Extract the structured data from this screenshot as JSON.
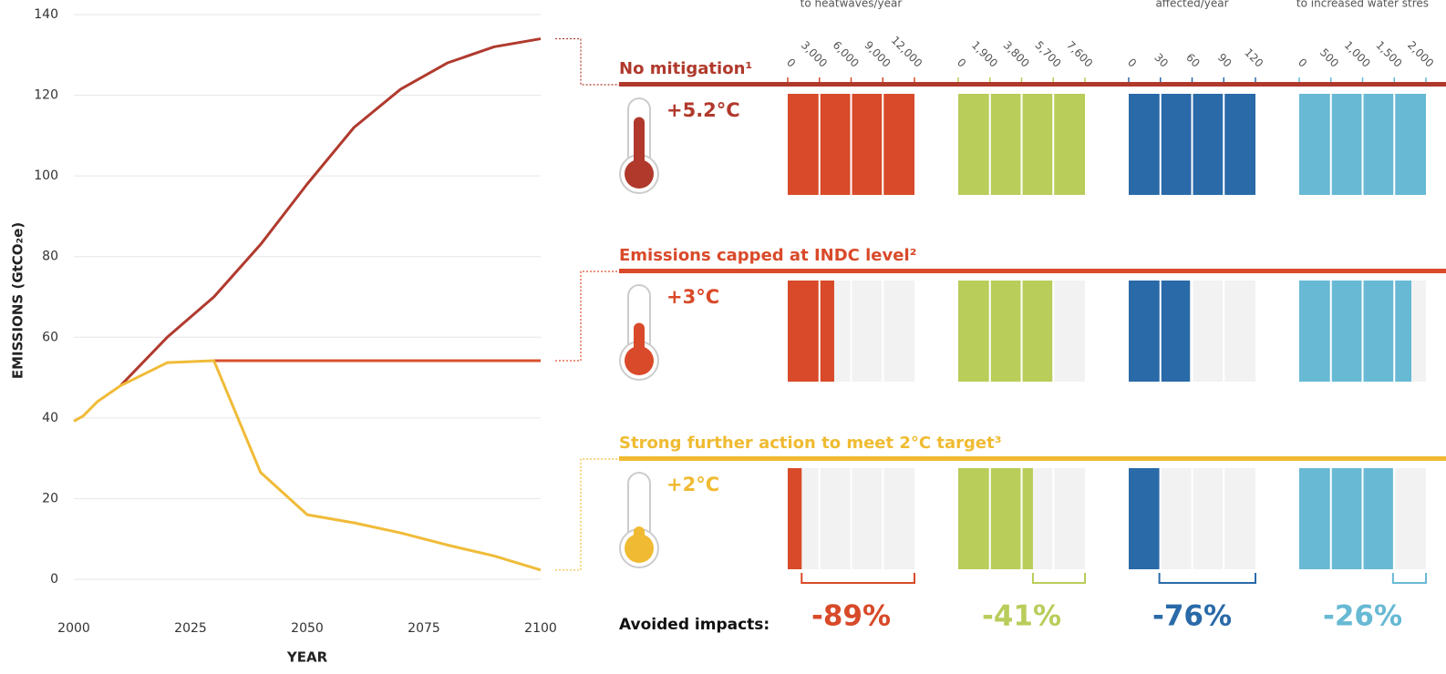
{
  "chart_data": [
    {
      "type": "line",
      "ylabel": "EMISSIONS (GtCO₂e)",
      "xlabel": "YEAR",
      "xlim": [
        2000,
        2100
      ],
      "xticks": [
        2000,
        2025,
        2050,
        2075,
        2100
      ],
      "ylim": [
        0,
        140
      ],
      "yticks": [
        0,
        20,
        40,
        60,
        80,
        100,
        120,
        140
      ],
      "grid": true,
      "series": [
        {
          "color": "#b03a2e",
          "x": [
            2010,
            2020,
            2030,
            2040,
            2050,
            2060,
            2070,
            2080,
            2090,
            2100
          ],
          "values": [
            48,
            60,
            70,
            83,
            98,
            112,
            121.5,
            128,
            132,
            134
          ]
        },
        {
          "color": "#d9502c",
          "x": [
            2030,
            2100
          ],
          "values": [
            54.2,
            54.2
          ]
        },
        {
          "color": "#f0bb38",
          "x": [
            2000,
            2002,
            2005,
            2010,
            2020,
            2030,
            2040,
            2050,
            2060,
            2070,
            2080,
            2090,
            2100
          ],
          "values": [
            39.2,
            40.5,
            44,
            48,
            53.7,
            54.2,
            26.5,
            16,
            14,
            11.5,
            8.5,
            5.8,
            2.3
          ]
        }
      ]
    },
    {
      "type": "impact_grid",
      "columns": [
        {
          "header": "to heatwaves/year",
          "color": "#d84a29",
          "xlim": [
            0,
            12000
          ],
          "xticks": [
            0,
            {
              "value": 3000,
              "label": "3,000"
            },
            {
              "value": 6000,
              "label": "6,000"
            },
            {
              "value": 9000,
              "label": "9,000"
            },
            {
              "value": 12000,
              "label": "12,000"
            }
          ]
        },
        {
          "color": "#b8cd5a",
          "xlim": [
            0,
            7600
          ],
          "xticks": [
            0,
            {
              "value": 1900,
              "label": "1,900"
            },
            {
              "value": 3800,
              "label": "3,800"
            },
            {
              "value": 5700,
              "label": "5,700"
            },
            {
              "value": 7600,
              "label": "7,600"
            }
          ]
        },
        {
          "header": "affected/year",
          "color": "#2a6aa8",
          "xlim": [
            0,
            120
          ],
          "xticks": [
            0,
            30,
            60,
            90,
            120
          ]
        },
        {
          "header": "to increased water stres",
          "color": "#67b9d4",
          "xlim": [
            0,
            2000
          ],
          "xticks": [
            0,
            500,
            {
              "value": 1000,
              "label": "1,000"
            },
            {
              "value": 1500,
              "label": "1,500"
            },
            {
              "value": 2000,
              "label": "2,000"
            }
          ]
        }
      ],
      "scenarios": [
        {
          "name": "No mitigation¹",
          "temperature": "+5.2°C",
          "color": "#b0392c",
          "values": [
            12000,
            7600,
            120,
            2000
          ]
        },
        {
          "name": "Emissions capped at INDC level²",
          "temperature": "+3°C",
          "color": "#d94a2a",
          "values": [
            4400,
            5700,
            58,
            1770
          ]
        },
        {
          "name": "Strong further action to meet 2°C target³",
          "temperature": "+2°C",
          "color": "#f0bb32",
          "values": [
            1320,
            4480,
            29,
            1480
          ]
        }
      ],
      "avoided_label": "Avoided impacts:",
      "avoided": [
        "-89%",
        "-41%",
        "-76%",
        "-26%"
      ]
    }
  ]
}
